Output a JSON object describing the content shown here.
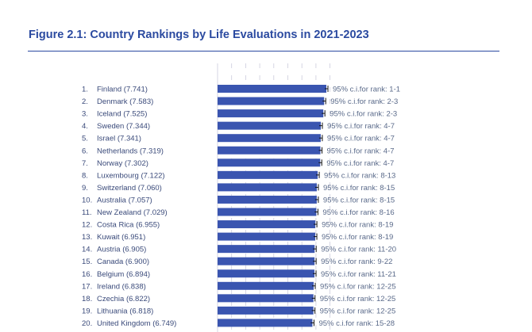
{
  "chart_data": {
    "type": "bar",
    "orientation": "horizontal",
    "title": "Figure 2.1: Country Rankings by Life Evaluations in 2021-2023",
    "xlim": [
      0,
      8
    ],
    "grid": true,
    "bar_color": "#3a55b0",
    "ranks": [
      "1.",
      "2.",
      "3.",
      "4.",
      "5.",
      "6.",
      "7.",
      "8.",
      "9.",
      "10.",
      "11.",
      "12.",
      "13.",
      "14.",
      "15.",
      "16.",
      "17.",
      "18.",
      "19.",
      "20."
    ],
    "categories": [
      "Finland (7.741)",
      "Denmark (7.583)",
      "Iceland (7.525)",
      "Sweden (7.344)",
      "Israel (7.341)",
      "Netherlands (7.319)",
      "Norway (7.302)",
      "Luxembourg (7.122)",
      "Switzerland (7.060)",
      "Australia (7.057)",
      "New Zealand (7.029)",
      "Costa Rica (6.955)",
      "Kuwait (6.951)",
      "Austria (6.905)",
      "Canada (6.900)",
      "Belgium (6.894)",
      "Ireland (6.838)",
      "Czechia (6.822)",
      "Lithuania (6.818)",
      "United Kingdom (6.749)"
    ],
    "values": [
      7.741,
      7.583,
      7.525,
      7.344,
      7.341,
      7.319,
      7.302,
      7.122,
      7.06,
      7.057,
      7.029,
      6.955,
      6.951,
      6.905,
      6.9,
      6.894,
      6.838,
      6.822,
      6.818,
      6.749
    ],
    "annotations": [
      "95% c.i.for rank: 1-1",
      "95% c.i.for rank: 2-3",
      "95% c.i.for rank: 2-3",
      "95% c.i.for rank: 4-7",
      "95% c.i.for rank: 4-7",
      "95% c.i.for rank: 4-7",
      "95% c.i.for rank: 4-7",
      "95% c.i.for rank: 8-13",
      "95% c.i.for rank: 8-15",
      "95% c.i.for rank: 8-15",
      "95% c.i.for rank: 8-16",
      "95% c.i.for rank: 8-19",
      "95% c.i.for rank: 8-19",
      "95% c.i.for rank: 11-20",
      "95% c.i.for rank: 9-22",
      "95% c.i.for rank: 11-21",
      "95% c.i.for rank: 12-25",
      "95% c.i.for rank: 12-25",
      "95% c.i.for rank: 12-25",
      "95% c.i.for rank: 15-28"
    ]
  }
}
